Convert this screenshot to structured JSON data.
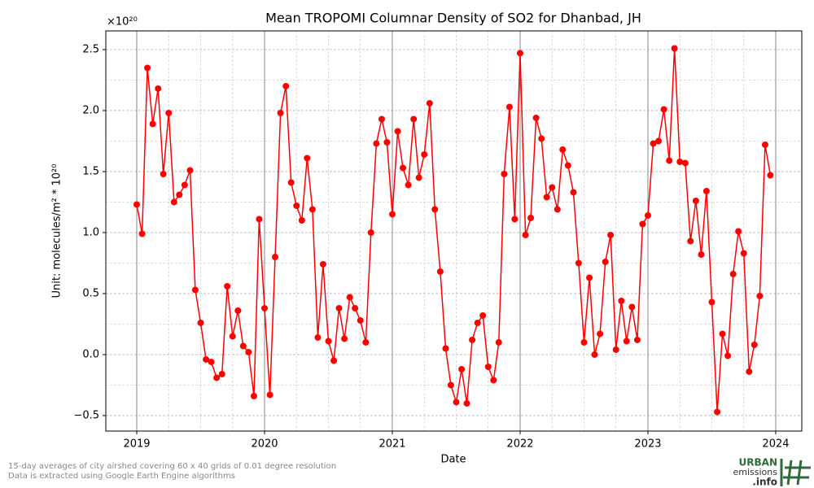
{
  "chart_data": {
    "type": "line",
    "title": "Mean TROPOMI Columnar Density of SO2 for Dhanbad, JH",
    "x_label": "Date",
    "y_label": "Unit: molecules/m² * 10²⁰",
    "y_multiplier": "×10²⁰",
    "notes": [
      "15-day averages of city airshed covering 60 x 40 grids of 0.01 degree resolution",
      "Data is extracted using Google Earth Engine algorithms"
    ],
    "logo": {
      "line1": "URBAN",
      "line2": "emissions",
      "line3": ".info"
    },
    "grid": true,
    "xlim": [
      2018.758,
      2024.204
    ],
    "xticks": [
      2019,
      2020,
      2021,
      2022,
      2023,
      2024
    ],
    "ylim": [
      -0.627,
      2.653
    ],
    "yticks": [
      {
        "value": -0.5,
        "label": "−0.5"
      },
      {
        "value": 0,
        "label": "0.0"
      },
      0.5,
      {
        "value": 1,
        "label": "1.0"
      },
      1.5,
      {
        "value": 2,
        "label": "2.0"
      },
      2.5
    ],
    "series": [
      {
        "name": "SO2",
        "color": "#ff0000",
        "x": [
          2019,
          2019.042,
          2019.083,
          2019.125,
          2019.167,
          2019.208,
          2019.25,
          2019.292,
          2019.333,
          2019.375,
          2019.417,
          2019.458,
          2019.5,
          2019.542,
          2019.583,
          2019.625,
          2019.667,
          2019.708,
          2019.75,
          2019.792,
          2019.833,
          2019.875,
          2019.917,
          2019.958,
          2020,
          2020.042,
          2020.083,
          2020.125,
          2020.167,
          2020.208,
          2020.25,
          2020.292,
          2020.333,
          2020.375,
          2020.417,
          2020.458,
          2020.5,
          2020.542,
          2020.583,
          2020.625,
          2020.667,
          2020.708,
          2020.75,
          2020.792,
          2020.833,
          2020.875,
          2020.917,
          2020.958,
          2021,
          2021.042,
          2021.083,
          2021.125,
          2021.167,
          2021.208,
          2021.25,
          2021.292,
          2021.333,
          2021.375,
          2021.417,
          2021.458,
          2021.5,
          2021.542,
          2021.583,
          2021.625,
          2021.667,
          2021.708,
          2021.75,
          2021.792,
          2021.833,
          2021.875,
          2021.917,
          2021.958,
          2022,
          2022.042,
          2022.083,
          2022.125,
          2022.167,
          2022.208,
          2022.25,
          2022.292,
          2022.333,
          2022.375,
          2022.417,
          2022.458,
          2022.5,
          2022.542,
          2022.583,
          2022.625,
          2022.667,
          2022.708,
          2022.75,
          2022.792,
          2022.833,
          2022.875,
          2022.917,
          2022.958,
          2023,
          2023.042,
          2023.083,
          2023.125,
          2023.167,
          2023.208,
          2023.25,
          2023.292,
          2023.333,
          2023.375,
          2023.417,
          2023.458,
          2023.5,
          2023.542,
          2023.583,
          2023.625,
          2023.667,
          2023.708,
          2023.75,
          2023.792,
          2023.833,
          2023.875,
          2023.917,
          2023.958
        ],
        "values": [
          1.23,
          0.99,
          2.35,
          1.89,
          2.18,
          1.48,
          1.98,
          1.25,
          1.31,
          1.39,
          1.51,
          0.53,
          0.26,
          -0.04,
          -0.06,
          -0.19,
          -0.16,
          0.56,
          0.15,
          0.36,
          0.07,
          0.02,
          -0.34,
          1.11,
          0.38,
          -0.33,
          0.8,
          1.98,
          2.2,
          1.41,
          1.22,
          1.1,
          1.61,
          1.19,
          0.14,
          0.74,
          0.11,
          -0.05,
          0.38,
          0.13,
          0.47,
          0.38,
          0.28,
          0.1,
          1.0,
          1.73,
          1.93,
          1.74,
          1.15,
          1.83,
          1.53,
          1.39,
          1.93,
          1.45,
          1.64,
          2.06,
          1.19,
          0.68,
          0.05,
          -0.25,
          -0.39,
          -0.12,
          -0.4,
          0.12,
          0.26,
          0.32,
          -0.1,
          -0.21,
          0.1,
          1.48,
          2.03,
          1.11,
          2.47,
          0.98,
          1.12,
          1.94,
          1.77,
          1.29,
          1.37,
          1.19,
          1.68,
          1.55,
          1.33,
          0.75,
          0.1,
          0.63,
          0.0,
          0.17,
          0.76,
          0.98,
          0.04,
          0.44,
          0.11,
          0.39,
          0.12,
          1.07,
          1.14,
          1.73,
          1.75,
          2.01,
          1.59,
          2.51,
          1.58,
          1.57,
          0.93,
          1.26,
          0.82,
          1.34,
          0.43,
          -0.47,
          0.17,
          -0.01,
          0.66,
          1.01,
          0.83,
          -0.14,
          0.08,
          0.48,
          1.72,
          1.47
        ]
      }
    ]
  }
}
